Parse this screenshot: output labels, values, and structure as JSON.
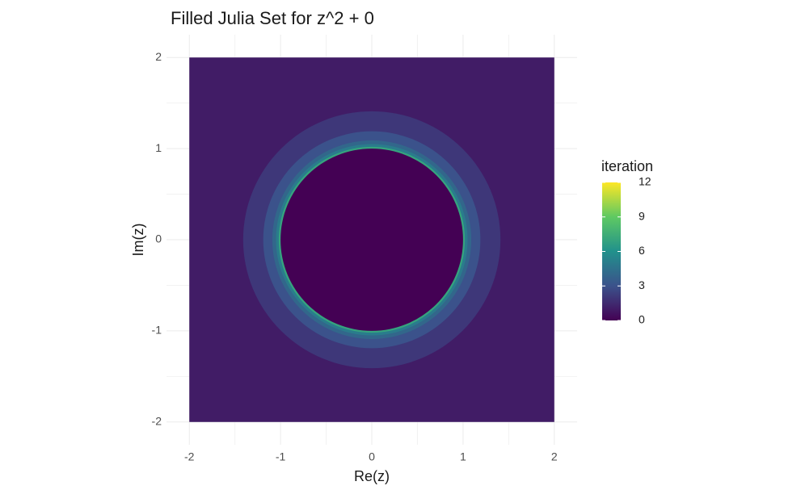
{
  "chart_data": {
    "type": "raster",
    "title": "Filled Julia Set for z^2 + 0",
    "x_label": "Re(z)",
    "y_label": "Im(z)",
    "xlim": [
      -2.25,
      2.25
    ],
    "ylim": [
      -2.25,
      2.25
    ],
    "xticks": [
      -2,
      -1,
      0,
      1,
      2
    ],
    "yticks": [
      -2,
      -1,
      0,
      1,
      2
    ],
    "minor_ticks": [
      -1.5,
      -0.5,
      0.5,
      1.5
    ],
    "grid": true,
    "raster_extent": [
      -2,
      2
    ],
    "background_iteration": 1,
    "regions": [
      {
        "iteration": 2,
        "radius": 1.41
      },
      {
        "iteration": 3,
        "radius": 1.19
      },
      {
        "iteration": 4,
        "radius": 1.09
      },
      {
        "iteration": 5,
        "radius": 1.05
      },
      {
        "iteration": 7,
        "radius": 1.02
      },
      {
        "iteration": 0,
        "radius": 1.0
      }
    ],
    "legend_title": "iteration",
    "color_limits": [
      0,
      12
    ],
    "color_ticks": [
      0,
      3,
      6,
      9,
      12
    ],
    "colormap": [
      "#440154",
      "#3b528b",
      "#21918c",
      "#5ec962",
      "#fde725"
    ]
  }
}
